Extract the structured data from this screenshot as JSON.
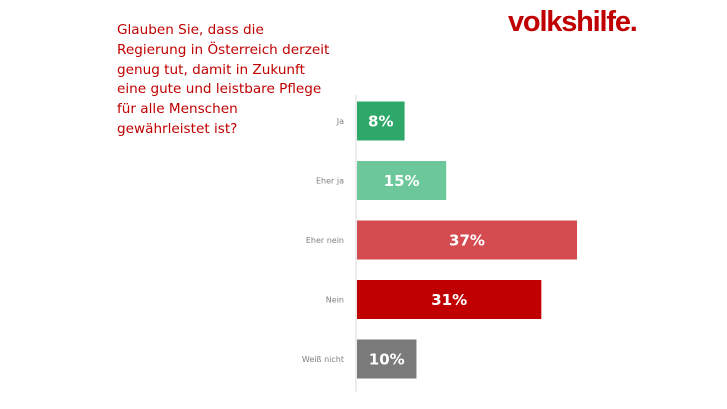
{
  "brand": {
    "logo_text": "volkshilfe."
  },
  "question": {
    "text": "Glauben Sie, dass die Regierung in Österreich derzeit genug tut, damit in Zukunft eine gute und leistbare Pflege für alle Menschen gewährleistet ist?"
  },
  "chart_data": {
    "type": "bar",
    "orientation": "horizontal",
    "title": "Glauben Sie, dass die Regierung in Österreich derzeit genug tut, damit in Zukunft eine gute und leistbare Pflege für alle Menschen gewährleistet ist?",
    "categories": [
      "Ja",
      "Eher ja",
      "Eher nein",
      "Nein",
      "Weiß nicht"
    ],
    "values": [
      8,
      15,
      37,
      31,
      10
    ],
    "value_labels": [
      "8%",
      "15%",
      "37%",
      "31%",
      "10%"
    ],
    "unit": "%",
    "colors": [
      "#2ea868",
      "#6cc89a",
      "#d44b50",
      "#c00000",
      "#7a7a7a"
    ],
    "xlabel": "",
    "ylabel": "",
    "xlim": [
      0,
      37
    ],
    "grid": false,
    "legend": "none"
  }
}
